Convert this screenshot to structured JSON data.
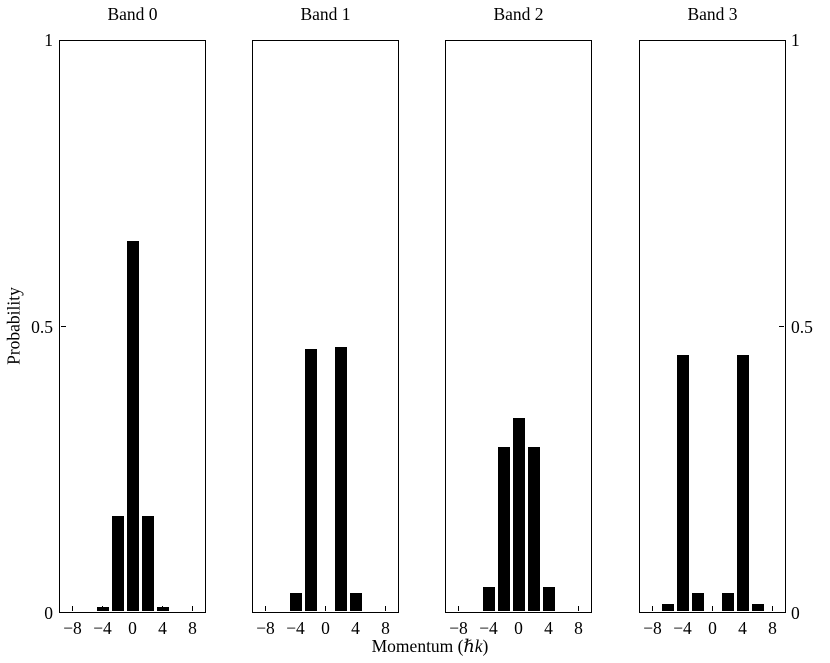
{
  "figure": {
    "background": "#ffffff",
    "bar_color": "#000000",
    "axis_color": "#000000",
    "ylabel": "Probability",
    "xlabel": {
      "prefix": "Momentum (",
      "italic": "ℏk",
      "suffix": ")"
    }
  },
  "axes": {
    "ylim": [
      0,
      1
    ],
    "xlim": [
      -9.8,
      9.8
    ],
    "y_ticks": [
      {
        "value": 1,
        "label": "1"
      },
      {
        "value": 0.5,
        "label": "0.5"
      },
      {
        "value": 0,
        "label": "0"
      }
    ],
    "x_ticks": [
      {
        "value": -8,
        "label": "−8"
      },
      {
        "value": -4,
        "label": "−4"
      },
      {
        "value": 0,
        "label": "0"
      },
      {
        "value": 4,
        "label": "4"
      },
      {
        "value": 8,
        "label": "8"
      }
    ]
  },
  "chart_data": {
    "type": "bar",
    "xlabel": "Momentum (ℏk)",
    "ylabel": "Probability",
    "ylim": [
      0,
      1
    ],
    "xlim": [
      -9.8,
      9.8
    ],
    "grid": false,
    "bar_width_units": 1.6,
    "panels": [
      {
        "title": "Band 0",
        "x": [
          -4,
          -2,
          0,
          2,
          4
        ],
        "values": [
          0.01,
          0.17,
          0.65,
          0.17,
          0.01
        ]
      },
      {
        "title": "Band 1",
        "x": [
          -4,
          -2,
          2,
          4
        ],
        "values": [
          0.035,
          0.46,
          0.465,
          0.035
        ]
      },
      {
        "title": "Band 2",
        "x": [
          -4,
          -2,
          0,
          2,
          4
        ],
        "values": [
          0.045,
          0.29,
          0.34,
          0.29,
          0.045
        ]
      },
      {
        "title": "Band 3",
        "x": [
          -6,
          -4,
          -2,
          2,
          4,
          6
        ],
        "values": [
          0.015,
          0.45,
          0.035,
          0.035,
          0.45,
          0.015
        ]
      }
    ]
  }
}
